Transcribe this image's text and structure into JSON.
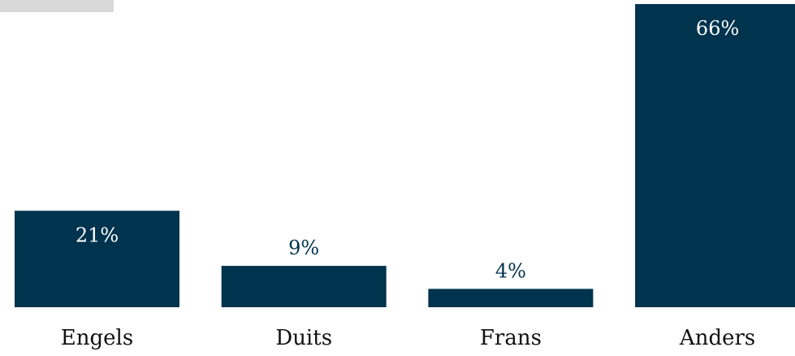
{
  "chart_data": {
    "type": "bar",
    "categories": [
      "Engels",
      "Duits",
      "Frans",
      "Anders"
    ],
    "values": [
      21,
      9,
      4,
      66
    ],
    "value_labels": [
      "21%",
      "9%",
      "4%",
      "66%"
    ],
    "title": "",
    "xlabel": "",
    "ylabel": "",
    "ylim": [
      0,
      66
    ],
    "grid": false,
    "legend": "none"
  },
  "colors": {
    "bar": "#00334e",
    "label_inside": "#ffffff",
    "label_outside": "#00334e",
    "category_text": "#111111",
    "corner_block": "#d9d9d9"
  }
}
